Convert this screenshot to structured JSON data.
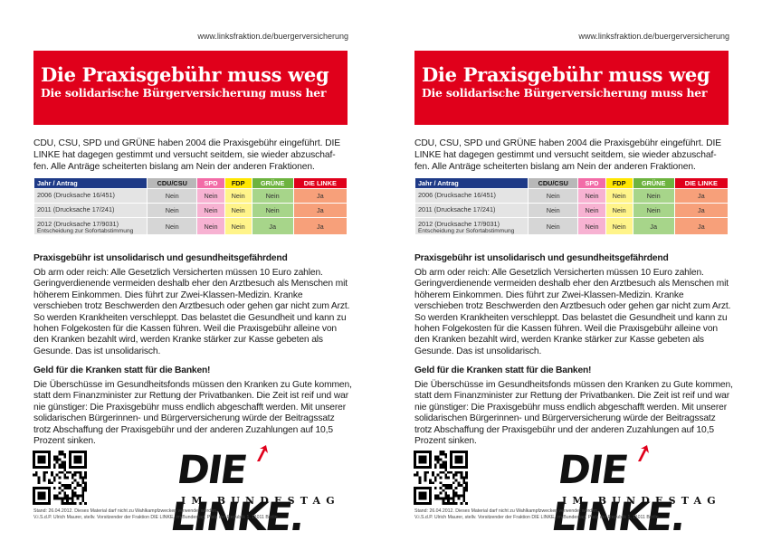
{
  "url": "www.linksfraktion.de/buergerversicherung",
  "banner": {
    "title": "Die Praxisgebühr muss weg",
    "subtitle": "Die solidarische Bürgerversicherung muss her"
  },
  "intro": "CDU, CSU, SPD und GRÜNE haben 2004 die Praxisgebühr eingeführt. DIE LINKE hat dagegen gestimmt und versucht seitdem, sie wieder abzuschaf-fen. Alle Anträge scheiterten bislang am Nein der anderen Fraktionen.",
  "table": {
    "headers": [
      "Jahr / Antrag",
      "CDU/CSU",
      "SPD",
      "FDP",
      "GRÜNE",
      "DIE LINKE"
    ],
    "rows": [
      {
        "label": "2006 (Drucksache 16/451)",
        "sublabel": "",
        "votes": [
          "Nein",
          "Nein",
          "Nein",
          "Nein",
          "Ja"
        ]
      },
      {
        "label": "2011 (Drucksache 17/241)",
        "sublabel": "",
        "votes": [
          "Nein",
          "Nein",
          "Nein",
          "Nein",
          "Ja"
        ]
      },
      {
        "label": "2012 (Drucksache 17/9031)",
        "sublabel": "Entscheidung zur Sofortabstimmung",
        "votes": [
          "Nein",
          "Nein",
          "Nein",
          "Ja",
          "Ja"
        ]
      }
    ]
  },
  "section1": {
    "heading": "Praxisgebühr ist unsolidarisch und gesundheitsgefährdend",
    "text": "Ob arm oder reich: Alle Gesetzlich Versicherten müssen 10 Euro zahlen. Geringverdienende vermeiden deshalb eher den Arztbesuch als Menschen mit höherem Einkommen. Dies führt zur Zwei-Klassen-Medizin. Kranke verschieben trotz Beschwerden den Arztbesuch oder gehen gar nicht zum Arzt. So werden Krankheiten verschleppt. Das belastet die Gesundheit und kann zu hohen Folgekosten für die Kassen führen. Weil die Praxisgebühr alleine von den Kranken bezahlt wird, werden Kranke stärker zur Kasse gebeten als Gesunde. Das ist unsolidarisch."
  },
  "section2": {
    "heading": "Geld für die Kranken statt für die Banken!",
    "text": "Die Überschüsse im Gesundheitsfonds müssen den Kranken zu Gute kommen, statt dem Finanzminister zur Rettung der Privatbanken. Die Zeit ist reif und war nie günstiger: Die Praxisgebühr muss endlich abgeschafft werden. Mit unserer solidarischen Bürgerinnen- und Bürgerversicherung würde der Beitragssatz trotz Abschaffung der Praxisgebühr und der anderen Zuzahlungen auf 10,5 Prozent sinken."
  },
  "logo": {
    "main": "DIE LINKE.",
    "sub": "IM BUNDESTAG"
  },
  "footer": {
    "line1": "Stand: 26.04.2012. Dieses Material darf nicht zu Wahlkampfzwecken verwendet werden.",
    "line2": "V.i.S.d.P. Ulrich Maurer, stellv. Vorsitzender der Fraktion DIE LINKE. im Bundestag, Platz der Republik 1, 11011 Berlin"
  },
  "colors": {
    "banner_red": "#e0001b",
    "header_blue": "#1e3a87",
    "spd": "#f26ca7",
    "fdp": "#ffe600",
    "gruene": "#6db33f",
    "linke": "#e0001b"
  }
}
